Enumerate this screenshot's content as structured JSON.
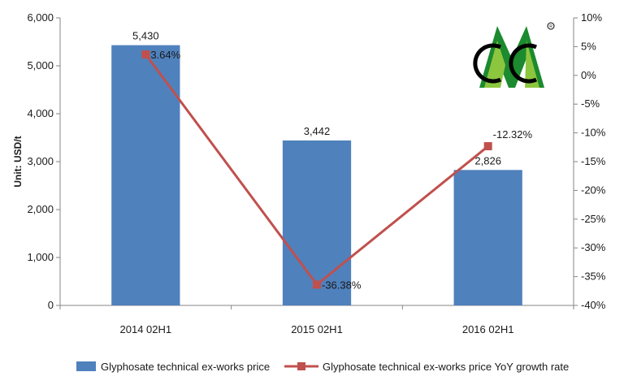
{
  "chart_data": {
    "type": "bar",
    "categories": [
      "2014 02H1",
      "2015 02H1",
      "2016 02H1"
    ],
    "series": [
      {
        "name": "Glyphosate technical ex-works price",
        "kind": "bar",
        "axis": "left",
        "color": "#4f81bd",
        "values": [
          5430,
          3442,
          2826
        ],
        "labels": [
          "5,430",
          "3,442",
          "2,826"
        ]
      },
      {
        "name": "Glyphosate technical ex-works price YoY growth rate",
        "kind": "line",
        "axis": "right",
        "color": "#c0504d",
        "values": [
          3.64,
          -36.38,
          -12.32
        ],
        "labels": [
          "3.64%",
          "-36.38%",
          "-12.32%"
        ]
      }
    ],
    "ylabel": "Unit: USD/t",
    "ylim": [
      0,
      6000
    ],
    "yticks": [
      "0",
      "1,000",
      "2,000",
      "3,000",
      "4,000",
      "5,000",
      "6,000"
    ],
    "y2lim": [
      -40,
      10
    ],
    "y2ticks": [
      "-40%",
      "-35%",
      "-30%",
      "-25%",
      "-20%",
      "-15%",
      "-10%",
      "-5%",
      "0%",
      "5%",
      "10%"
    ],
    "grid": false,
    "legend": "bottom",
    "logo": {
      "icon": "cmc-logo",
      "colors": [
        "#1c8a2e",
        "#8cc63f",
        "#000000"
      ]
    }
  }
}
